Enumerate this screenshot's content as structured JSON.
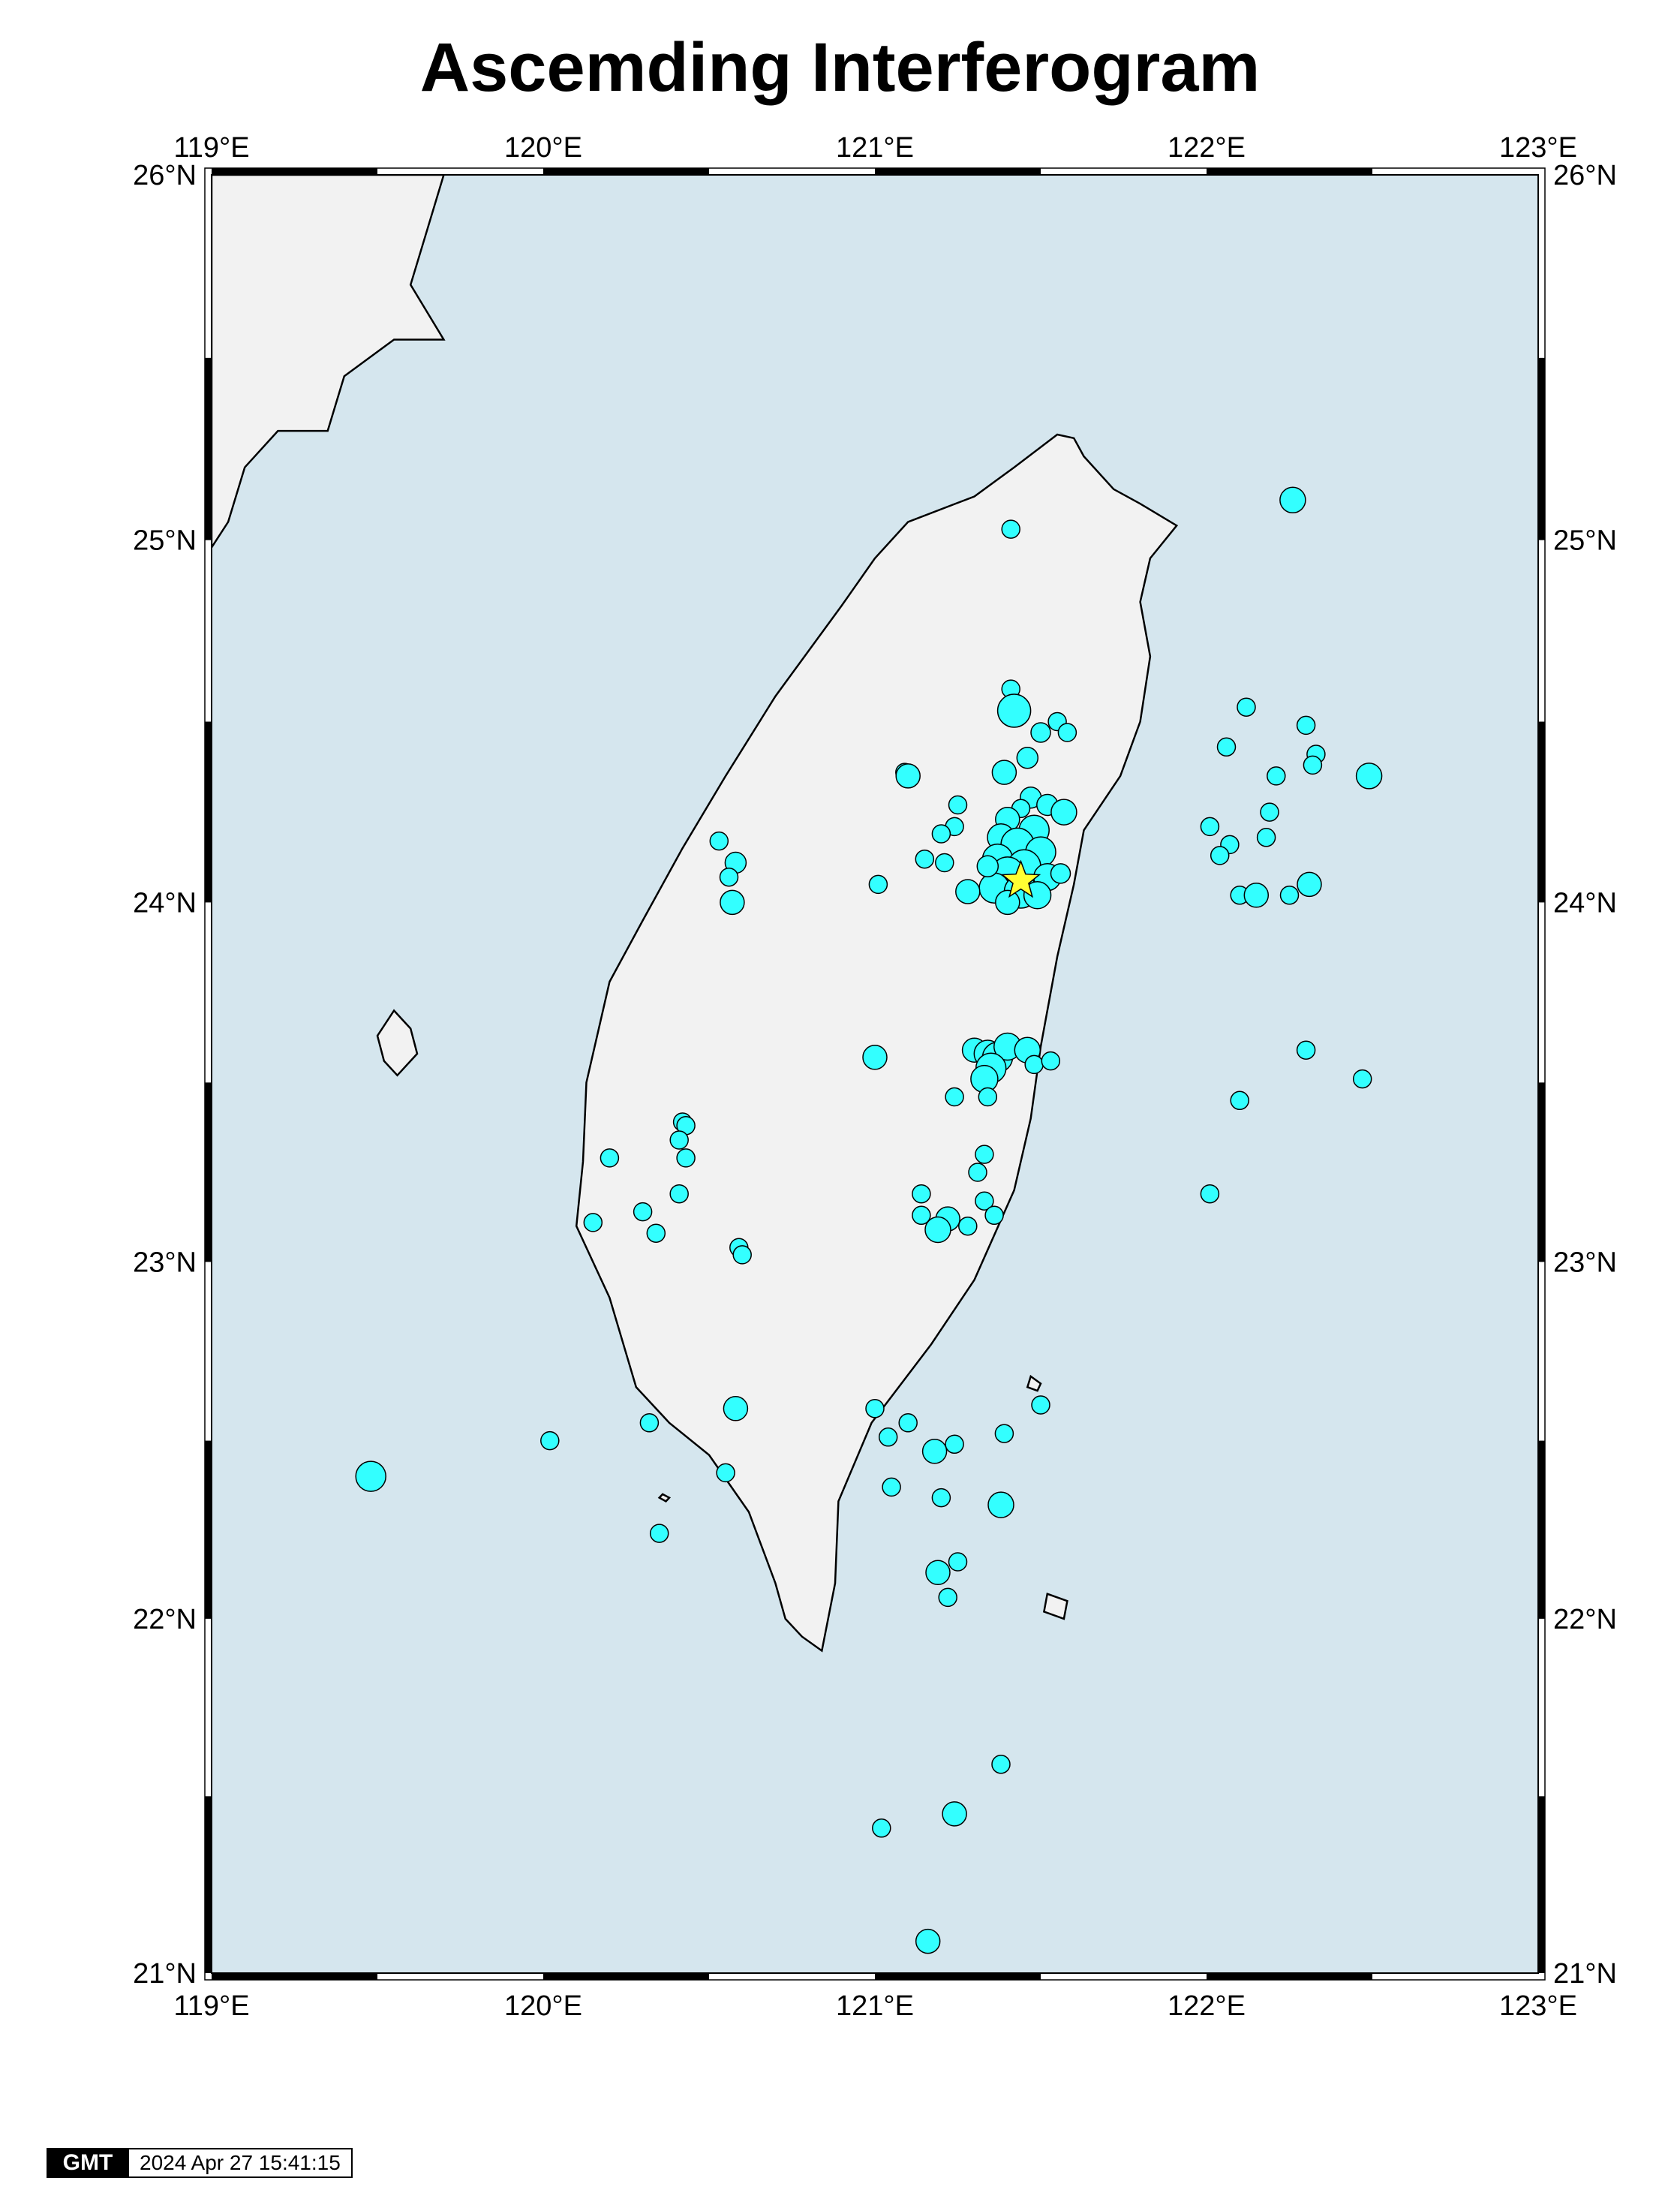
{
  "title": "Ascemding Interferogram",
  "map": {
    "projection": "mercator",
    "region": {
      "lon_min": 119,
      "lon_max": 123,
      "lat_min": 21,
      "lat_max": 26
    },
    "colors": {
      "ocean": "#d5e6ee",
      "land": "#f2f2f2",
      "event_fill": "#33ffff",
      "event_stroke": "#000000",
      "star": "#ffff33"
    },
    "lon_ticks": [
      {
        "value": 119,
        "label": "119°E"
      },
      {
        "value": 120,
        "label": "120°E"
      },
      {
        "value": 121,
        "label": "121°E"
      },
      {
        "value": 122,
        "label": "122°E"
      },
      {
        "value": 123,
        "label": "123°E"
      }
    ],
    "lat_ticks": [
      {
        "value": 21,
        "label": "21°N"
      },
      {
        "value": 22,
        "label": "22°N"
      },
      {
        "value": 23,
        "label": "23°N"
      },
      {
        "value": 24,
        "label": "24°N"
      },
      {
        "value": 25,
        "label": "25°N"
      },
      {
        "value": 26,
        "label": "26°N"
      }
    ],
    "epicenter": {
      "lon": 121.44,
      "lat": 24.06
    },
    "taiwan_coast": [
      [
        121.55,
        25.29
      ],
      [
        121.6,
        25.28
      ],
      [
        121.63,
        25.23
      ],
      [
        121.72,
        25.14
      ],
      [
        121.8,
        25.1
      ],
      [
        121.91,
        25.04
      ],
      [
        121.83,
        24.95
      ],
      [
        121.8,
        24.83
      ],
      [
        121.83,
        24.68
      ],
      [
        121.8,
        24.5
      ],
      [
        121.74,
        24.35
      ],
      [
        121.63,
        24.2
      ],
      [
        121.6,
        24.05
      ],
      [
        121.55,
        23.85
      ],
      [
        121.5,
        23.6
      ],
      [
        121.47,
        23.4
      ],
      [
        121.42,
        23.2
      ],
      [
        121.3,
        22.95
      ],
      [
        121.17,
        22.77
      ],
      [
        120.99,
        22.55
      ],
      [
        120.89,
        22.33
      ],
      [
        120.88,
        22.1
      ],
      [
        120.84,
        21.91
      ],
      [
        120.78,
        21.95
      ],
      [
        120.73,
        22.0
      ],
      [
        120.7,
        22.1
      ],
      [
        120.62,
        22.3
      ],
      [
        120.5,
        22.46
      ],
      [
        120.38,
        22.55
      ],
      [
        120.28,
        22.65
      ],
      [
        120.2,
        22.9
      ],
      [
        120.1,
        23.1
      ],
      [
        120.12,
        23.28
      ],
      [
        120.13,
        23.5
      ],
      [
        120.2,
        23.78
      ],
      [
        120.3,
        23.95
      ],
      [
        120.42,
        24.15
      ],
      [
        120.55,
        24.35
      ],
      [
        120.7,
        24.57
      ],
      [
        120.9,
        24.82
      ],
      [
        121.0,
        24.95
      ],
      [
        121.1,
        25.05
      ],
      [
        121.3,
        25.12
      ],
      [
        121.42,
        25.2
      ],
      [
        121.55,
        25.29
      ]
    ],
    "mainland_coast": [
      [
        119.0,
        26.0
      ],
      [
        119.7,
        26.0
      ],
      [
        119.65,
        25.85
      ],
      [
        119.6,
        25.7
      ],
      [
        119.7,
        25.55
      ],
      [
        119.55,
        25.55
      ],
      [
        119.4,
        25.45
      ],
      [
        119.35,
        25.3
      ],
      [
        119.2,
        25.3
      ],
      [
        119.1,
        25.2
      ],
      [
        119.05,
        25.05
      ],
      [
        119.0,
        24.98
      ]
    ],
    "islands": [
      {
        "name": "penghu",
        "pts": [
          [
            119.55,
            23.7
          ],
          [
            119.6,
            23.65
          ],
          [
            119.62,
            23.58
          ],
          [
            119.56,
            23.52
          ],
          [
            119.52,
            23.56
          ],
          [
            119.5,
            23.63
          ]
        ]
      },
      {
        "name": "lyudao",
        "pts": [
          [
            121.47,
            22.68
          ],
          [
            121.5,
            22.66
          ],
          [
            121.49,
            22.64
          ],
          [
            121.46,
            22.65
          ]
        ]
      },
      {
        "name": "lanyu",
        "pts": [
          [
            121.52,
            22.07
          ],
          [
            121.58,
            22.05
          ],
          [
            121.57,
            22.0
          ],
          [
            121.51,
            22.02
          ]
        ]
      },
      {
        "name": "liuqiu",
        "pts": [
          [
            120.36,
            22.35
          ],
          [
            120.38,
            22.34
          ],
          [
            120.37,
            22.33
          ],
          [
            120.35,
            22.34
          ]
        ]
      }
    ],
    "events": [
      {
        "lon": 121.41,
        "lat": 25.03,
        "r": 12
      },
      {
        "lon": 122.26,
        "lat": 25.11,
        "r": 17
      },
      {
        "lon": 121.41,
        "lat": 24.59,
        "r": 12
      },
      {
        "lon": 121.42,
        "lat": 24.53,
        "r": 22
      },
      {
        "lon": 121.5,
        "lat": 24.47,
        "r": 13
      },
      {
        "lon": 121.55,
        "lat": 24.5,
        "r": 12
      },
      {
        "lon": 121.58,
        "lat": 24.47,
        "r": 12
      },
      {
        "lon": 121.46,
        "lat": 24.4,
        "r": 14
      },
      {
        "lon": 121.39,
        "lat": 24.36,
        "r": 16
      },
      {
        "lon": 121.09,
        "lat": 24.36,
        "r": 12
      },
      {
        "lon": 121.1,
        "lat": 24.35,
        "r": 16
      },
      {
        "lon": 121.25,
        "lat": 24.27,
        "r": 12
      },
      {
        "lon": 121.24,
        "lat": 24.21,
        "r": 12
      },
      {
        "lon": 121.2,
        "lat": 24.19,
        "r": 12
      },
      {
        "lon": 121.15,
        "lat": 24.12,
        "r": 12
      },
      {
        "lon": 121.21,
        "lat": 24.11,
        "r": 12
      },
      {
        "lon": 121.47,
        "lat": 24.29,
        "r": 14
      },
      {
        "lon": 121.52,
        "lat": 24.27,
        "r": 14
      },
      {
        "lon": 121.57,
        "lat": 24.25,
        "r": 17
      },
      {
        "lon": 121.44,
        "lat": 24.26,
        "r": 12
      },
      {
        "lon": 121.4,
        "lat": 24.23,
        "r": 16
      },
      {
        "lon": 121.48,
        "lat": 24.2,
        "r": 20
      },
      {
        "lon": 121.38,
        "lat": 24.18,
        "r": 18
      },
      {
        "lon": 121.43,
        "lat": 24.16,
        "r": 22
      },
      {
        "lon": 121.5,
        "lat": 24.14,
        "r": 20
      },
      {
        "lon": 121.37,
        "lat": 24.12,
        "r": 20
      },
      {
        "lon": 121.45,
        "lat": 24.1,
        "r": 22
      },
      {
        "lon": 121.4,
        "lat": 24.08,
        "r": 22
      },
      {
        "lon": 121.52,
        "lat": 24.07,
        "r": 18
      },
      {
        "lon": 121.36,
        "lat": 24.04,
        "r": 20
      },
      {
        "lon": 121.44,
        "lat": 24.03,
        "r": 22
      },
      {
        "lon": 121.49,
        "lat": 24.02,
        "r": 18
      },
      {
        "lon": 121.4,
        "lat": 24.0,
        "r": 16
      },
      {
        "lon": 121.28,
        "lat": 24.03,
        "r": 16
      },
      {
        "lon": 121.56,
        "lat": 24.08,
        "r": 13
      },
      {
        "lon": 121.34,
        "lat": 24.1,
        "r": 14
      },
      {
        "lon": 121.01,
        "lat": 24.05,
        "r": 12
      },
      {
        "lon": 120.53,
        "lat": 24.17,
        "r": 12
      },
      {
        "lon": 120.58,
        "lat": 24.11,
        "r": 14
      },
      {
        "lon": 120.56,
        "lat": 24.07,
        "r": 12
      },
      {
        "lon": 120.57,
        "lat": 24.0,
        "r": 16
      },
      {
        "lon": 122.12,
        "lat": 24.54,
        "r": 12
      },
      {
        "lon": 122.3,
        "lat": 24.49,
        "r": 12
      },
      {
        "lon": 122.06,
        "lat": 24.43,
        "r": 12
      },
      {
        "lon": 122.33,
        "lat": 24.41,
        "r": 12
      },
      {
        "lon": 122.21,
        "lat": 24.35,
        "r": 12
      },
      {
        "lon": 122.32,
        "lat": 24.38,
        "r": 12
      },
      {
        "lon": 122.49,
        "lat": 24.35,
        "r": 17
      },
      {
        "lon": 122.19,
        "lat": 24.25,
        "r": 12
      },
      {
        "lon": 122.01,
        "lat": 24.21,
        "r": 12
      },
      {
        "lon": 122.07,
        "lat": 24.16,
        "r": 12
      },
      {
        "lon": 122.04,
        "lat": 24.13,
        "r": 12
      },
      {
        "lon": 122.18,
        "lat": 24.18,
        "r": 12
      },
      {
        "lon": 122.1,
        "lat": 24.02,
        "r": 12
      },
      {
        "lon": 122.15,
        "lat": 24.02,
        "r": 16
      },
      {
        "lon": 122.25,
        "lat": 24.02,
        "r": 12
      },
      {
        "lon": 122.31,
        "lat": 24.05,
        "r": 16
      },
      {
        "lon": 121.3,
        "lat": 23.59,
        "r": 16
      },
      {
        "lon": 121.34,
        "lat": 23.58,
        "r": 18
      },
      {
        "lon": 121.37,
        "lat": 23.57,
        "r": 20
      },
      {
        "lon": 121.4,
        "lat": 23.6,
        "r": 18
      },
      {
        "lon": 121.35,
        "lat": 23.54,
        "r": 20
      },
      {
        "lon": 121.33,
        "lat": 23.51,
        "r": 18
      },
      {
        "lon": 121.46,
        "lat": 23.59,
        "r": 17
      },
      {
        "lon": 121.48,
        "lat": 23.55,
        "r": 12
      },
      {
        "lon": 121.53,
        "lat": 23.56,
        "r": 12
      },
      {
        "lon": 121.0,
        "lat": 23.57,
        "r": 16
      },
      {
        "lon": 121.24,
        "lat": 23.46,
        "r": 12
      },
      {
        "lon": 121.34,
        "lat": 23.46,
        "r": 12
      },
      {
        "lon": 122.3,
        "lat": 23.59,
        "r": 12
      },
      {
        "lon": 122.47,
        "lat": 23.51,
        "r": 12
      },
      {
        "lon": 122.1,
        "lat": 23.45,
        "r": 12
      },
      {
        "lon": 122.01,
        "lat": 23.19,
        "r": 12
      },
      {
        "lon": 120.42,
        "lat": 23.39,
        "r": 12
      },
      {
        "lon": 120.43,
        "lat": 23.38,
        "r": 12
      },
      {
        "lon": 120.41,
        "lat": 23.34,
        "r": 12
      },
      {
        "lon": 120.43,
        "lat": 23.29,
        "r": 12
      },
      {
        "lon": 120.2,
        "lat": 23.29,
        "r": 12
      },
      {
        "lon": 120.41,
        "lat": 23.19,
        "r": 12
      },
      {
        "lon": 120.3,
        "lat": 23.14,
        "r": 12
      },
      {
        "lon": 120.15,
        "lat": 23.11,
        "r": 12
      },
      {
        "lon": 120.34,
        "lat": 23.08,
        "r": 12
      },
      {
        "lon": 120.59,
        "lat": 23.04,
        "r": 12
      },
      {
        "lon": 120.6,
        "lat": 23.02,
        "r": 12
      },
      {
        "lon": 121.33,
        "lat": 23.3,
        "r": 12
      },
      {
        "lon": 121.31,
        "lat": 23.25,
        "r": 12
      },
      {
        "lon": 121.14,
        "lat": 23.19,
        "r": 12
      },
      {
        "lon": 121.33,
        "lat": 23.17,
        "r": 12
      },
      {
        "lon": 121.36,
        "lat": 23.13,
        "r": 12
      },
      {
        "lon": 121.14,
        "lat": 23.13,
        "r": 12
      },
      {
        "lon": 121.22,
        "lat": 23.12,
        "r": 16
      },
      {
        "lon": 121.19,
        "lat": 23.09,
        "r": 17
      },
      {
        "lon": 121.28,
        "lat": 23.1,
        "r": 12
      },
      {
        "lon": 121.0,
        "lat": 22.59,
        "r": 12
      },
      {
        "lon": 121.04,
        "lat": 22.51,
        "r": 12
      },
      {
        "lon": 121.1,
        "lat": 22.55,
        "r": 12
      },
      {
        "lon": 121.18,
        "lat": 22.47,
        "r": 16
      },
      {
        "lon": 121.24,
        "lat": 22.49,
        "r": 12
      },
      {
        "lon": 121.39,
        "lat": 22.52,
        "r": 12
      },
      {
        "lon": 121.5,
        "lat": 22.6,
        "r": 12
      },
      {
        "lon": 121.05,
        "lat": 22.37,
        "r": 12
      },
      {
        "lon": 121.2,
        "lat": 22.34,
        "r": 12
      },
      {
        "lon": 121.38,
        "lat": 22.32,
        "r": 17
      },
      {
        "lon": 121.19,
        "lat": 22.13,
        "r": 16
      },
      {
        "lon": 121.25,
        "lat": 22.16,
        "r": 12
      },
      {
        "lon": 121.22,
        "lat": 22.06,
        "r": 12
      },
      {
        "lon": 120.58,
        "lat": 22.59,
        "r": 16
      },
      {
        "lon": 120.32,
        "lat": 22.55,
        "r": 12
      },
      {
        "lon": 120.02,
        "lat": 22.5,
        "r": 12
      },
      {
        "lon": 120.55,
        "lat": 22.41,
        "r": 12
      },
      {
        "lon": 119.48,
        "lat": 22.4,
        "r": 20
      },
      {
        "lon": 120.35,
        "lat": 22.24,
        "r": 12
      },
      {
        "lon": 121.38,
        "lat": 21.59,
        "r": 12
      },
      {
        "lon": 121.24,
        "lat": 21.45,
        "r": 16
      },
      {
        "lon": 121.02,
        "lat": 21.41,
        "r": 12
      },
      {
        "lon": 121.16,
        "lat": 21.09,
        "r": 16
      }
    ]
  },
  "footer": {
    "logo": "GMT",
    "timestamp": "2024 Apr 27 15:41:15"
  }
}
